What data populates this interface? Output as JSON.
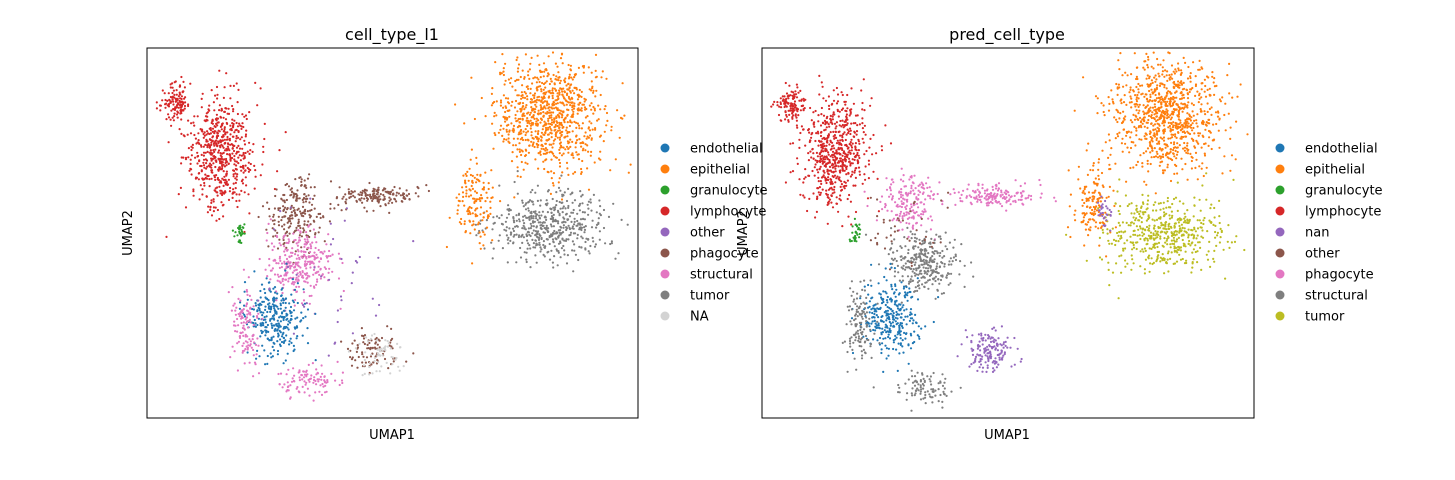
{
  "chart_data": [
    {
      "type": "scatter",
      "title": "cell_type_l1",
      "xlabel": "UMAP1",
      "ylabel": "UMAP2",
      "legend_position": "right",
      "grid": false,
      "categories": [
        {
          "name": "endothelial",
          "color": "#1f77b4"
        },
        {
          "name": "epithelial",
          "color": "#ff7f0e"
        },
        {
          "name": "granulocyte",
          "color": "#2ca02c"
        },
        {
          "name": "lymphocyte",
          "color": "#d62728"
        },
        {
          "name": "other",
          "color": "#9467bd"
        },
        {
          "name": "phagocyte",
          "color": "#8c564b"
        },
        {
          "name": "structural",
          "color": "#e377c2"
        },
        {
          "name": "tumor",
          "color": "#7f7f7f"
        },
        {
          "name": "NA",
          "color": "#d3d3d3"
        }
      ],
      "clusters": [
        {
          "category": "epithelial",
          "cx": 0.82,
          "cy": 0.82,
          "rx": 0.11,
          "ry": 0.15,
          "n": 900
        },
        {
          "category": "tumor",
          "cx": 0.82,
          "cy": 0.52,
          "rx": 0.12,
          "ry": 0.09,
          "n": 500
        },
        {
          "category": "epithelial",
          "cx": 0.67,
          "cy": 0.58,
          "rx": 0.04,
          "ry": 0.1,
          "n": 140
        },
        {
          "category": "phagocyte",
          "cx": 0.47,
          "cy": 0.6,
          "rx": 0.08,
          "ry": 0.03,
          "n": 160
        },
        {
          "category": "lymphocyte",
          "cx": 0.15,
          "cy": 0.72,
          "rx": 0.07,
          "ry": 0.15,
          "n": 600
        },
        {
          "category": "lymphocyte",
          "cx": 0.06,
          "cy": 0.85,
          "rx": 0.03,
          "ry": 0.05,
          "n": 120
        },
        {
          "category": "phagocyte",
          "cx": 0.3,
          "cy": 0.55,
          "rx": 0.06,
          "ry": 0.1,
          "n": 220
        },
        {
          "category": "structural",
          "cx": 0.31,
          "cy": 0.42,
          "rx": 0.07,
          "ry": 0.08,
          "n": 300
        },
        {
          "category": "endothelial",
          "cx": 0.26,
          "cy": 0.27,
          "rx": 0.06,
          "ry": 0.1,
          "n": 300
        },
        {
          "category": "structural",
          "cx": 0.2,
          "cy": 0.25,
          "rx": 0.03,
          "ry": 0.1,
          "n": 120
        },
        {
          "category": "structural",
          "cx": 0.33,
          "cy": 0.1,
          "rx": 0.06,
          "ry": 0.04,
          "n": 100
        },
        {
          "category": "phagocyte",
          "cx": 0.46,
          "cy": 0.18,
          "rx": 0.05,
          "ry": 0.06,
          "n": 90
        },
        {
          "category": "NA",
          "cx": 0.47,
          "cy": 0.17,
          "rx": 0.05,
          "ry": 0.06,
          "n": 60
        },
        {
          "category": "granulocyte",
          "cx": 0.19,
          "cy": 0.5,
          "rx": 0.01,
          "ry": 0.03,
          "n": 30
        },
        {
          "category": "other",
          "cx": 0.35,
          "cy": 0.35,
          "rx": 0.15,
          "ry": 0.2,
          "n": 40
        }
      ]
    },
    {
      "type": "scatter",
      "title": "pred_cell_type",
      "xlabel": "UMAP1",
      "ylabel": "UMAP2",
      "legend_position": "right",
      "grid": false,
      "categories": [
        {
          "name": "endothelial",
          "color": "#1f77b4"
        },
        {
          "name": "epithelial",
          "color": "#ff7f0e"
        },
        {
          "name": "granulocyte",
          "color": "#2ca02c"
        },
        {
          "name": "lymphocyte",
          "color": "#d62728"
        },
        {
          "name": "nan",
          "color": "#9467bd"
        },
        {
          "name": "other",
          "color": "#8c564b"
        },
        {
          "name": "phagocyte",
          "color": "#e377c2"
        },
        {
          "name": "structural",
          "color": "#7f7f7f"
        },
        {
          "name": "tumor",
          "color": "#bcbd22"
        }
      ],
      "clusters": [
        {
          "category": "epithelial",
          "cx": 0.82,
          "cy": 0.82,
          "rx": 0.11,
          "ry": 0.15,
          "n": 900
        },
        {
          "category": "tumor",
          "cx": 0.82,
          "cy": 0.5,
          "rx": 0.12,
          "ry": 0.1,
          "n": 500
        },
        {
          "category": "epithelial",
          "cx": 0.67,
          "cy": 0.58,
          "rx": 0.04,
          "ry": 0.1,
          "n": 140
        },
        {
          "category": "phagocyte",
          "cx": 0.47,
          "cy": 0.6,
          "rx": 0.08,
          "ry": 0.03,
          "n": 160
        },
        {
          "category": "lymphocyte",
          "cx": 0.15,
          "cy": 0.72,
          "rx": 0.07,
          "ry": 0.15,
          "n": 600
        },
        {
          "category": "lymphocyte",
          "cx": 0.06,
          "cy": 0.85,
          "rx": 0.03,
          "ry": 0.05,
          "n": 120
        },
        {
          "category": "phagocyte",
          "cx": 0.3,
          "cy": 0.58,
          "rx": 0.06,
          "ry": 0.08,
          "n": 180
        },
        {
          "category": "structural",
          "cx": 0.33,
          "cy": 0.42,
          "rx": 0.07,
          "ry": 0.08,
          "n": 300
        },
        {
          "category": "endothelial",
          "cx": 0.26,
          "cy": 0.27,
          "rx": 0.06,
          "ry": 0.1,
          "n": 300
        },
        {
          "category": "structural",
          "cx": 0.2,
          "cy": 0.25,
          "rx": 0.03,
          "ry": 0.1,
          "n": 120
        },
        {
          "category": "structural",
          "cx": 0.33,
          "cy": 0.08,
          "rx": 0.05,
          "ry": 0.04,
          "n": 90
        },
        {
          "category": "nan",
          "cx": 0.46,
          "cy": 0.18,
          "rx": 0.05,
          "ry": 0.06,
          "n": 150
        },
        {
          "category": "nan",
          "cx": 0.69,
          "cy": 0.55,
          "rx": 0.02,
          "ry": 0.04,
          "n": 30
        },
        {
          "category": "granulocyte",
          "cx": 0.19,
          "cy": 0.5,
          "rx": 0.01,
          "ry": 0.03,
          "n": 30
        },
        {
          "category": "other",
          "cx": 0.3,
          "cy": 0.5,
          "rx": 0.08,
          "ry": 0.08,
          "n": 40
        }
      ]
    }
  ]
}
